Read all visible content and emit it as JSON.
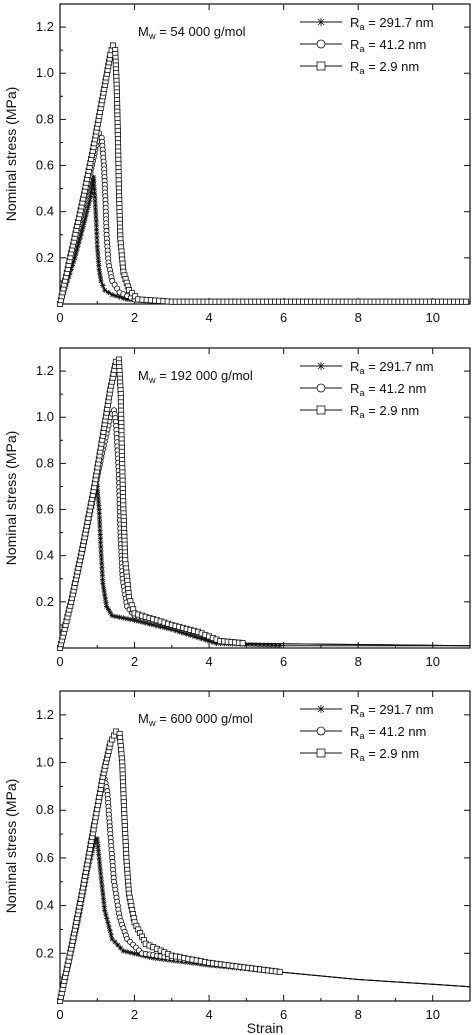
{
  "chart_data": [
    {
      "type": "line",
      "annotation_main": "M",
      "annotation_sub": "w",
      "annotation_rest": " = 54 000 g/mol",
      "ylabel": "Nominal stress (MPa)",
      "xlabel": "",
      "xlim": [
        0,
        11
      ],
      "ylim": [
        0,
        1.3
      ],
      "xticks": [
        "0",
        "2",
        "4",
        "6",
        "8",
        "10"
      ],
      "yticks": [
        "0.2",
        "0.4",
        "0.6",
        "0.8",
        "1.0",
        "1.2"
      ],
      "legend_position": "top-right",
      "series": [
        {
          "name_main": "R",
          "name_sub": "a",
          "name_rest": " = 291.7 nm",
          "marker": "asterisk",
          "points": [
            [
              0,
              0
            ],
            [
              0.2,
              0.1
            ],
            [
              0.4,
              0.2
            ],
            [
              0.6,
              0.32
            ],
            [
              0.8,
              0.45
            ],
            [
              0.9,
              0.55
            ],
            [
              0.93,
              0.48
            ],
            [
              0.97,
              0.36
            ],
            [
              1.0,
              0.25
            ],
            [
              1.05,
              0.15
            ],
            [
              1.1,
              0.1
            ],
            [
              1.2,
              0.06
            ],
            [
              1.4,
              0.04
            ],
            [
              1.8,
              0.02
            ],
            [
              2.5,
              0.01
            ],
            [
              5,
              0.01
            ],
            [
              11,
              0.01
            ]
          ]
        },
        {
          "name_main": "R",
          "name_sub": "a",
          "name_rest": " = 41.2 nm",
          "marker": "circle",
          "points": [
            [
              0,
              0
            ],
            [
              0.25,
              0.16
            ],
            [
              0.5,
              0.33
            ],
            [
              0.75,
              0.52
            ],
            [
              0.95,
              0.67
            ],
            [
              1.05,
              0.74
            ],
            [
              1.12,
              0.72
            ],
            [
              1.18,
              0.6
            ],
            [
              1.22,
              0.45
            ],
            [
              1.25,
              0.3
            ],
            [
              1.3,
              0.18
            ],
            [
              1.4,
              0.1
            ],
            [
              1.6,
              0.05
            ],
            [
              2.0,
              0.02
            ],
            [
              3,
              0.01
            ],
            [
              11,
              0.01
            ]
          ]
        },
        {
          "name_main": "R",
          "name_sub": "a",
          "name_rest": " = 2.9 nm",
          "marker": "square",
          "points": [
            [
              0,
              0
            ],
            [
              0.3,
              0.22
            ],
            [
              0.6,
              0.44
            ],
            [
              0.9,
              0.68
            ],
            [
              1.15,
              0.9
            ],
            [
              1.35,
              1.08
            ],
            [
              1.42,
              1.12
            ],
            [
              1.48,
              1.1
            ],
            [
              1.52,
              0.95
            ],
            [
              1.55,
              0.75
            ],
            [
              1.58,
              0.5
            ],
            [
              1.62,
              0.28
            ],
            [
              1.7,
              0.14
            ],
            [
              1.85,
              0.06
            ],
            [
              2.1,
              0.02
            ],
            [
              3,
              0.01
            ],
            [
              11,
              0.01
            ]
          ]
        }
      ]
    },
    {
      "type": "line",
      "annotation_main": "M",
      "annotation_sub": "w",
      "annotation_rest": " = 192 000 g/mol",
      "ylabel": "Nominal stress (MPa)",
      "xlabel": "",
      "xlim": [
        0,
        11
      ],
      "ylim": [
        0,
        1.3
      ],
      "xticks": [
        "0",
        "2",
        "4",
        "6",
        "8",
        "10"
      ],
      "yticks": [
        "0.2",
        "0.4",
        "0.6",
        "0.8",
        "1.0",
        "1.2"
      ],
      "legend_position": "top-right",
      "series": [
        {
          "name_main": "R",
          "name_sub": "a",
          "name_rest": " = 291.7 nm",
          "marker": "asterisk",
          "points": [
            [
              0,
              0
            ],
            [
              0.25,
              0.17
            ],
            [
              0.5,
              0.35
            ],
            [
              0.75,
              0.55
            ],
            [
              0.95,
              0.69
            ],
            [
              1.0,
              0.7
            ],
            [
              1.05,
              0.6
            ],
            [
              1.1,
              0.42
            ],
            [
              1.15,
              0.28
            ],
            [
              1.25,
              0.18
            ],
            [
              1.4,
              0.14
            ],
            [
              2.0,
              0.12
            ],
            [
              3.0,
              0.08
            ],
            [
              3.6,
              0.05
            ],
            [
              4.2,
              0.02
            ],
            [
              6,
              0.01
            ],
            [
              11,
              0.01
            ]
          ]
        },
        {
          "name_main": "R",
          "name_sub": "a",
          "name_rest": " = 41.2 nm",
          "marker": "circle",
          "points": [
            [
              0,
              0
            ],
            [
              0.3,
              0.2
            ],
            [
              0.6,
              0.42
            ],
            [
              0.9,
              0.66
            ],
            [
              1.15,
              0.86
            ],
            [
              1.35,
              1.0
            ],
            [
              1.45,
              1.03
            ],
            [
              1.5,
              0.98
            ],
            [
              1.58,
              0.75
            ],
            [
              1.62,
              0.5
            ],
            [
              1.68,
              0.3
            ],
            [
              1.8,
              0.18
            ],
            [
              2.0,
              0.14
            ],
            [
              3.0,
              0.1
            ],
            [
              3.6,
              0.07
            ],
            [
              4.3,
              0.03
            ],
            [
              5,
              0.02
            ],
            [
              11,
              0.01
            ]
          ]
        },
        {
          "name_main": "R",
          "name_sub": "a",
          "name_rest": " = 2.9 nm",
          "marker": "square",
          "points": [
            [
              0,
              0
            ],
            [
              0.3,
              0.2
            ],
            [
              0.6,
              0.43
            ],
            [
              0.9,
              0.68
            ],
            [
              1.15,
              0.92
            ],
            [
              1.35,
              1.12
            ],
            [
              1.5,
              1.24
            ],
            [
              1.58,
              1.25
            ],
            [
              1.63,
              1.1
            ],
            [
              1.66,
              0.85
            ],
            [
              1.7,
              0.6
            ],
            [
              1.75,
              0.38
            ],
            [
              1.85,
              0.22
            ],
            [
              2.0,
              0.15
            ],
            [
              3.0,
              0.1
            ],
            [
              3.7,
              0.07
            ],
            [
              4.3,
              0.03
            ],
            [
              5,
              0.02
            ],
            [
              11,
              0.01
            ]
          ]
        }
      ]
    },
    {
      "type": "line",
      "annotation_main": "M",
      "annotation_sub": "w",
      "annotation_rest": " = 600 000 g/mol",
      "ylabel": "Nominal stress (MPa)",
      "xlabel": "Strain",
      "xlim": [
        0,
        11
      ],
      "ylim": [
        0,
        1.3
      ],
      "xticks": [
        "0",
        "2",
        "4",
        "6",
        "8",
        "10"
      ],
      "yticks": [
        "0.2",
        "0.4",
        "0.6",
        "0.8",
        "1.0",
        "1.2"
      ],
      "legend_position": "top-right",
      "series": [
        {
          "name_main": "R",
          "name_sub": "a",
          "name_rest": " = 291.7 nm",
          "marker": "asterisk",
          "points": [
            [
              0,
              0
            ],
            [
              0.25,
              0.16
            ],
            [
              0.5,
              0.34
            ],
            [
              0.75,
              0.55
            ],
            [
              0.95,
              0.68
            ],
            [
              1.0,
              0.68
            ],
            [
              1.08,
              0.55
            ],
            [
              1.2,
              0.38
            ],
            [
              1.4,
              0.26
            ],
            [
              1.7,
              0.21
            ],
            [
              2.5,
              0.18
            ],
            [
              4,
              0.15
            ],
            [
              6,
              0.12
            ],
            [
              8,
              0.09
            ],
            [
              10,
              0.07
            ],
            [
              11,
              0.06
            ]
          ]
        },
        {
          "name_main": "R",
          "name_sub": "a",
          "name_rest": " = 41.2 nm",
          "marker": "circle",
          "points": [
            [
              0,
              0
            ],
            [
              0.3,
              0.22
            ],
            [
              0.6,
              0.46
            ],
            [
              0.9,
              0.73
            ],
            [
              1.1,
              0.88
            ],
            [
              1.2,
              0.93
            ],
            [
              1.27,
              0.88
            ],
            [
              1.35,
              0.7
            ],
            [
              1.45,
              0.5
            ],
            [
              1.6,
              0.35
            ],
            [
              1.8,
              0.26
            ],
            [
              2.2,
              0.2
            ],
            [
              3,
              0.18
            ],
            [
              4,
              0.16
            ],
            [
              6,
              0.12
            ],
            [
              8,
              0.09
            ],
            [
              10,
              0.07
            ],
            [
              11,
              0.06
            ]
          ]
        },
        {
          "name_main": "R",
          "name_sub": "a",
          "name_rest": " = 2.9 nm",
          "marker": "square",
          "points": [
            [
              0,
              0
            ],
            [
              0.3,
              0.22
            ],
            [
              0.6,
              0.46
            ],
            [
              0.9,
              0.72
            ],
            [
              1.15,
              0.94
            ],
            [
              1.35,
              1.08
            ],
            [
              1.5,
              1.13
            ],
            [
              1.6,
              1.12
            ],
            [
              1.67,
              1.0
            ],
            [
              1.72,
              0.8
            ],
            [
              1.78,
              0.6
            ],
            [
              1.85,
              0.45
            ],
            [
              2.0,
              0.33
            ],
            [
              2.3,
              0.24
            ],
            [
              3,
              0.19
            ],
            [
              4,
              0.16
            ],
            [
              6,
              0.12
            ],
            [
              8,
              0.09
            ],
            [
              10,
              0.07
            ],
            [
              11,
              0.06
            ]
          ]
        }
      ]
    }
  ]
}
